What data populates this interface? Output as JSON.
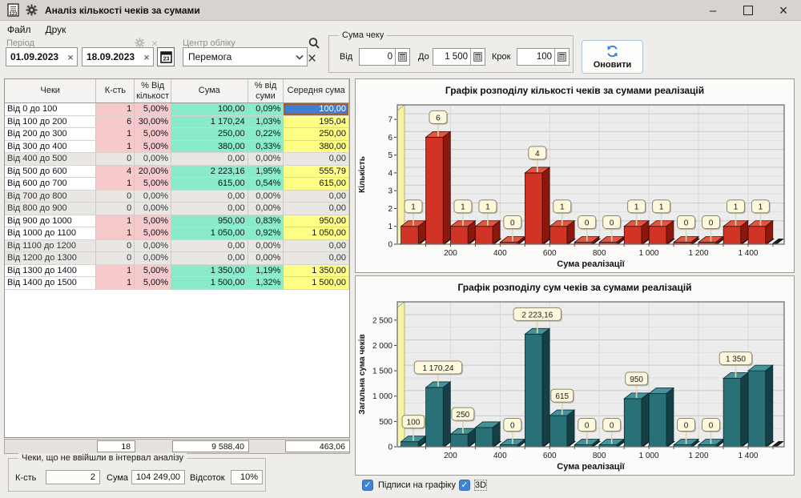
{
  "window": {
    "title": "Аналіз кількості чеків за сумами"
  },
  "menu": {
    "items": [
      "Файл",
      "Друк"
    ]
  },
  "toolbar": {
    "period": {
      "label": "Період",
      "from": "01.09.2023",
      "to": "18.09.2023"
    },
    "center": {
      "label": "Центр обліку",
      "value": "Перемога"
    },
    "sum_group": {
      "label": "Сума чеку",
      "from_label": "Від",
      "from_value": "0",
      "to_label": "До",
      "to_value": "1 500",
      "step_label": "Крок",
      "step_value": "100"
    },
    "refresh_label": "Оновити"
  },
  "table": {
    "columns": [
      [
        "Чеки"
      ],
      [
        "К-сть"
      ],
      [
        "% Від",
        "кількост"
      ],
      [
        "Сума"
      ],
      [
        "% від",
        "суми"
      ],
      [
        "Середня сума"
      ]
    ],
    "rows": [
      [
        "Від 0 до 100",
        "1",
        "5,00%",
        "100,00",
        "0,09%",
        "100,00"
      ],
      [
        "Від 100 до 200",
        "6",
        "30,00%",
        "1 170,24",
        "1,03%",
        "195,04"
      ],
      [
        "Від 200 до 300",
        "1",
        "5,00%",
        "250,00",
        "0,22%",
        "250,00"
      ],
      [
        "Від 300 до 400",
        "1",
        "5,00%",
        "380,00",
        "0,33%",
        "380,00"
      ],
      [
        "Від 400 до 500",
        "0",
        "0,00%",
        "0,00",
        "0,00%",
        "0,00"
      ],
      [
        "Від 500 до 600",
        "4",
        "20,00%",
        "2 223,16",
        "1,95%",
        "555,79"
      ],
      [
        "Від 600 до 700",
        "1",
        "5,00%",
        "615,00",
        "0,54%",
        "615,00"
      ],
      [
        "Від 700 до 800",
        "0",
        "0,00%",
        "0,00",
        "0,00%",
        "0,00"
      ],
      [
        "Від 800 до 900",
        "0",
        "0,00%",
        "0,00",
        "0,00%",
        "0,00"
      ],
      [
        "Від 900 до 1000",
        "1",
        "5,00%",
        "950,00",
        "0,83%",
        "950,00"
      ],
      [
        "Від 1000 до 1100",
        "1",
        "5,00%",
        "1 050,00",
        "0,92%",
        "1 050,00"
      ],
      [
        "Від 1100 до 1200",
        "0",
        "0,00%",
        "0,00",
        "0,00%",
        "0,00"
      ],
      [
        "Від 1200 до 1300",
        "0",
        "0,00%",
        "0,00",
        "0,00%",
        "0,00"
      ],
      [
        "Від 1300 до 1400",
        "1",
        "5,00%",
        "1 350,00",
        "1,19%",
        "1 350,00"
      ],
      [
        "Від 1400 до 1500",
        "1",
        "5,00%",
        "1 500,00",
        "1,32%",
        "1 500,00"
      ]
    ],
    "selected_cell": {
      "row": 0,
      "col": 5
    },
    "totals": {
      "count": "18",
      "sum": "9 588,40",
      "avg": "463,06"
    }
  },
  "excluded": {
    "label": "Чеки, що не ввійшли в інтервал аналізу",
    "count_label": "К-сть",
    "count": "2",
    "sum_label": "Сума",
    "sum": "104 249,00",
    "percent_label": "Відсоток",
    "percent": "10%"
  },
  "chart_options": [
    {
      "label": "Підписи на графіку",
      "checked": true,
      "focused": false
    },
    {
      "label": "3D",
      "checked": true,
      "focused": true
    }
  ],
  "chart_data": [
    {
      "type": "bar",
      "title": "Графік розподілу кількості чеків за сумами реалізацій",
      "xlabel": "Сума реалізації",
      "ylabel": "Кількість",
      "categories": [
        "0-100",
        "100-200",
        "200-300",
        "300-400",
        "400-500",
        "500-600",
        "600-700",
        "700-800",
        "800-900",
        "900-1000",
        "1000-1100",
        "1100-1200",
        "1200-1300",
        "1300-1400",
        "1400-1500"
      ],
      "values": [
        1,
        6,
        1,
        1,
        0,
        4,
        1,
        0,
        0,
        1,
        1,
        0,
        0,
        1,
        1
      ],
      "bar_labels": [
        "1",
        "6",
        "1",
        "1",
        "0",
        "4",
        "1",
        "0",
        "0",
        "1",
        "1",
        "0",
        "0",
        "1",
        "1"
      ],
      "interval_width": 100,
      "x_axis_max": 1560,
      "x_minor_step": 100,
      "x_tick_values": [
        200,
        400,
        600,
        800,
        1000,
        1200,
        1400
      ],
      "x_tick_labels": [
        "200",
        "400",
        "600",
        "800",
        "1 000",
        "1 200",
        "1 400"
      ],
      "ylim": [
        0,
        7.5
      ],
      "y_tick_values": [
        0,
        1,
        2,
        3,
        4,
        5,
        6,
        7
      ],
      "y_tick_labels": [
        "0",
        "1",
        "2",
        "3",
        "4",
        "5",
        "6",
        "7"
      ],
      "y_minor_step": 0.5,
      "grid": true,
      "style_3d": true,
      "colors": {
        "front": "#d13425",
        "top": "#e4543f",
        "side": "#8c170c",
        "outline": "#3c0e07"
      }
    },
    {
      "type": "bar",
      "title": "Графік розподілу сум чеків за сумами реалізацій",
      "xlabel": "Сума реалізації",
      "ylabel": "Загальна сума чеків",
      "categories": [
        "0-100",
        "100-200",
        "200-300",
        "300-400",
        "400-500",
        "500-600",
        "600-700",
        "700-800",
        "800-900",
        "900-1000",
        "1000-1100",
        "1100-1200",
        "1200-1300",
        "1300-1400",
        "1400-1500"
      ],
      "values": [
        100,
        1170.24,
        250,
        380,
        0,
        2223.16,
        615,
        0,
        0,
        950,
        1050,
        0,
        0,
        1350,
        1500
      ],
      "bar_labels": [
        "100",
        "1 170,24",
        "250",
        null,
        "0",
        "2 223,16",
        "615",
        "0",
        "0",
        "950",
        null,
        "0",
        "0",
        "1 350",
        null
      ],
      "interval_width": 100,
      "x_axis_max": 1560,
      "x_minor_step": 100,
      "x_tick_values": [
        200,
        400,
        600,
        800,
        1000,
        1200,
        1400
      ],
      "x_tick_labels": [
        "200",
        "400",
        "600",
        "800",
        "1 000",
        "1 200",
        "1 400"
      ],
      "ylim": [
        0,
        2750
      ],
      "y_tick_values": [
        0,
        500,
        1000,
        1500,
        2000,
        2500
      ],
      "y_tick_labels": [
        "0",
        "500",
        "1 000",
        "1 500",
        "2 000",
        "2 500"
      ],
      "y_minor_step": 250,
      "grid": true,
      "style_3d": true,
      "colors": {
        "front": "#2a7077",
        "top": "#45939a",
        "side": "#153f45",
        "outline": "#0a2d32"
      }
    }
  ]
}
